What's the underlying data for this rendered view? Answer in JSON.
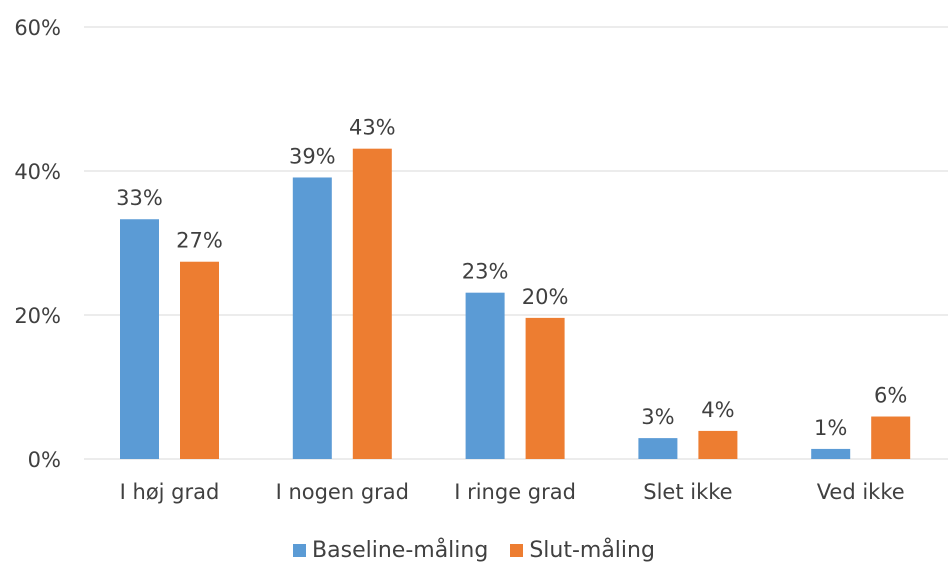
{
  "chart_data": {
    "type": "bar",
    "categories": [
      "I høj grad",
      "I nogen grad",
      "I ringe grad",
      "Slet ikke",
      "Ved ikke"
    ],
    "series": [
      {
        "name": "Baseline-måling",
        "values": [
          33.3,
          39.1,
          23.1,
          2.9,
          1.4
        ],
        "labels": [
          "33%",
          "39%",
          "23%",
          "3%",
          "1%"
        ],
        "color": "#5B9BD5"
      },
      {
        "name": "Slut-måling",
        "values": [
          27.4,
          43.1,
          19.6,
          3.9,
          5.9
        ],
        "labels": [
          "27%",
          "43%",
          "20%",
          "4%",
          "6%"
        ],
        "color": "#ED7D31"
      }
    ],
    "ylim": [
      0,
      60
    ],
    "yticks": [
      0,
      20,
      40,
      60
    ],
    "ytick_labels": [
      "0%",
      "20%",
      "40%",
      "60%"
    ],
    "grid": true,
    "legend_position": "bottom"
  }
}
